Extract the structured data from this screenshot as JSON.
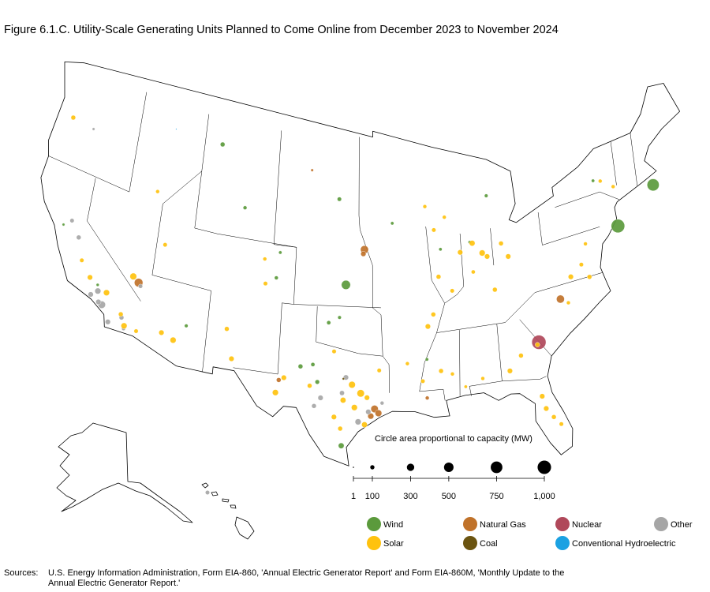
{
  "title": "Figure 6.1.C. Utility-Scale Generating Units Planned to Come Online from December 2023 to November 2024",
  "size_legend": {
    "title": "Circle area proportional to capacity (MW)",
    "ticks": [
      1,
      100,
      300,
      500,
      750,
      {
        "value": 1000,
        "label": "1,000"
      }
    ]
  },
  "sources": [
    {
      "name": "Wind",
      "color": "#5b9a3c",
      "units": [
        {
          "lon": -70.5,
          "lat": 41.0,
          "mw": 800
        },
        {
          "lon": -74.0,
          "lat": 39.3,
          "mw": 1000
        },
        {
          "lon": -97.6,
          "lat": 38.6,
          "mw": 450
        },
        {
          "lon": -109.4,
          "lat": 47.2,
          "mw": 120
        },
        {
          "lon": -106.8,
          "lat": 43.2,
          "mw": 80
        },
        {
          "lon": -98.3,
          "lat": 44.6,
          "mw": 100
        },
        {
          "lon": -93.5,
          "lat": 42.9,
          "mw": 60
        },
        {
          "lon": -103.4,
          "lat": 40.5,
          "mw": 60
        },
        {
          "lon": -103.6,
          "lat": 38.7,
          "mw": 80
        },
        {
          "lon": -99.0,
          "lat": 35.9,
          "mw": 90
        },
        {
          "lon": -98.1,
          "lat": 36.3,
          "mw": 70
        },
        {
          "lon": -101.2,
          "lat": 32.7,
          "mw": 120
        },
        {
          "lon": -100.2,
          "lat": 32.9,
          "mw": 90
        },
        {
          "lon": -99.8,
          "lat": 31.7,
          "mw": 110
        },
        {
          "lon": -97.8,
          "lat": 27.3,
          "mw": 180
        },
        {
          "lon": -110.7,
          "lat": 34.2,
          "mw": 70
        },
        {
          "lon": -89.3,
          "lat": 40.8,
          "mw": 60
        },
        {
          "lon": -86.7,
          "lat": 41.0,
          "mw": 60
        },
        {
          "lon": -84.9,
          "lat": 44.0,
          "mw": 70
        },
        {
          "lon": -75.4,
          "lat": 42.9,
          "mw": 60
        },
        {
          "lon": -90.9,
          "lat": 33.2,
          "mw": 60
        },
        {
          "lon": -118.2,
          "lat": 35.1,
          "mw": 50
        },
        {
          "lon": -121.8,
          "lat": 38.1,
          "mw": 40
        }
      ]
    },
    {
      "name": "Natural Gas",
      "color": "#c0722a",
      "units": [
        {
          "lon": -96.0,
          "lat": 41.1,
          "mw": 350
        },
        {
          "lon": -96.1,
          "lat": 40.8,
          "mw": 150
        },
        {
          "lon": -115.0,
          "lat": 36.2,
          "mw": 400
        },
        {
          "lon": -95.2,
          "lat": 29.9,
          "mw": 300
        },
        {
          "lon": -94.9,
          "lat": 29.6,
          "mw": 250
        },
        {
          "lon": -95.5,
          "lat": 29.4,
          "mw": 200
        },
        {
          "lon": -79.6,
          "lat": 35.7,
          "mw": 350
        },
        {
          "lon": -102.9,
          "lat": 31.6,
          "mw": 120
        },
        {
          "lon": -100.9,
          "lat": 46.5,
          "mw": 40
        },
        {
          "lon": -91.0,
          "lat": 30.5,
          "mw": 80
        }
      ]
    },
    {
      "name": "Nuclear",
      "color": "#b0485a",
      "units": [
        {
          "lon": -81.76,
          "lat": 33.14,
          "mw": 1100
        }
      ]
    },
    {
      "name": "Other",
      "color": "#a6a6a6",
      "units": [
        {
          "lon": -121.0,
          "lat": 45.1,
          "mw": 40
        },
        {
          "lon": -118.1,
          "lat": 34.7,
          "mw": 200
        },
        {
          "lon": -118.6,
          "lat": 34.3,
          "mw": 150
        },
        {
          "lon": -117.6,
          "lat": 33.9,
          "mw": 300
        },
        {
          "lon": -117.9,
          "lat": 34.0,
          "mw": 150
        },
        {
          "lon": -120.4,
          "lat": 37.7,
          "mw": 120
        },
        {
          "lon": -121.2,
          "lat": 38.6,
          "mw": 100
        },
        {
          "lon": -116.9,
          "lat": 32.9,
          "mw": 150
        },
        {
          "lon": -115.6,
          "lat": 32.8,
          "mw": 80
        },
        {
          "lon": -114.8,
          "lat": 36.0,
          "mw": 100
        },
        {
          "lon": -97.5,
          "lat": 32.1,
          "mw": 150
        },
        {
          "lon": -97.8,
          "lat": 31.0,
          "mw": 130
        },
        {
          "lon": -99.5,
          "lat": 30.6,
          "mw": 150
        },
        {
          "lon": -100.0,
          "lat": 30.0,
          "mw": 120
        },
        {
          "lon": -96.5,
          "lat": 29.0,
          "mw": 200
        },
        {
          "lon": -95.7,
          "lat": 29.7,
          "mw": 150
        },
        {
          "lon": -94.6,
          "lat": 30.3,
          "mw": 80
        },
        {
          "lon": -115.9,
          "lat": 33.5,
          "mw": 120
        },
        {
          "lon": -158.0,
          "lat": 21.5,
          "mw": 100
        }
      ]
    },
    {
      "name": "Solar",
      "color": "#ffc20e",
      "units": [
        {
          "lon": -117.4,
          "lat": 34.8,
          "mw": 200
        },
        {
          "lon": -115.6,
          "lat": 33.0,
          "mw": 200
        },
        {
          "lon": -116.0,
          "lat": 33.7,
          "mw": 120
        },
        {
          "lon": -118.9,
          "lat": 35.4,
          "mw": 150
        },
        {
          "lon": -119.8,
          "lat": 36.3,
          "mw": 100
        },
        {
          "lon": -114.6,
          "lat": 32.9,
          "mw": 100
        },
        {
          "lon": -112.6,
          "lat": 33.3,
          "mw": 150
        },
        {
          "lon": -111.6,
          "lat": 33.0,
          "mw": 200
        },
        {
          "lon": -115.5,
          "lat": 36.5,
          "mw": 250
        },
        {
          "lon": -106.8,
          "lat": 32.6,
          "mw": 150
        },
        {
          "lon": -107.4,
          "lat": 34.6,
          "mw": 120
        },
        {
          "lon": -104.5,
          "lat": 38.2,
          "mw": 100
        },
        {
          "lon": -104.7,
          "lat": 39.9,
          "mw": 80
        },
        {
          "lon": -114.6,
          "lat": 42.7,
          "mw": 80
        },
        {
          "lon": -113.3,
          "lat": 39.3,
          "mw": 100
        },
        {
          "lon": -122.9,
          "lat": 45.2,
          "mw": 120
        },
        {
          "lon": -102.5,
          "lat": 31.8,
          "mw": 150
        },
        {
          "lon": -103.1,
          "lat": 30.7,
          "mw": 200
        },
        {
          "lon": -100.4,
          "lat": 31.4,
          "mw": 120
        },
        {
          "lon": -98.5,
          "lat": 33.9,
          "mw": 100
        },
        {
          "lon": -97.0,
          "lat": 31.6,
          "mw": 250
        },
        {
          "lon": -96.3,
          "lat": 31.0,
          "mw": 300
        },
        {
          "lon": -96.8,
          "lat": 30.0,
          "mw": 200
        },
        {
          "lon": -97.7,
          "lat": 30.5,
          "mw": 180
        },
        {
          "lon": -98.4,
          "lat": 29.3,
          "mw": 150
        },
        {
          "lon": -96.0,
          "lat": 28.8,
          "mw": 180
        },
        {
          "lon": -97.9,
          "lat": 28.5,
          "mw": 120
        },
        {
          "lon": -95.8,
          "lat": 30.7,
          "mw": 150
        },
        {
          "lon": -94.8,
          "lat": 32.6,
          "mw": 100
        },
        {
          "lon": -92.5,
          "lat": 33.0,
          "mw": 80
        },
        {
          "lon": -90.7,
          "lat": 35.5,
          "mw": 150
        },
        {
          "lon": -90.2,
          "lat": 36.3,
          "mw": 120
        },
        {
          "lon": -91.3,
          "lat": 31.7,
          "mw": 100
        },
        {
          "lon": -89.8,
          "lat": 32.3,
          "mw": 120
        },
        {
          "lon": -88.9,
          "lat": 32.0,
          "mw": 80
        },
        {
          "lon": -87.9,
          "lat": 31.0,
          "mw": 60
        },
        {
          "lon": -86.5,
          "lat": 31.4,
          "mw": 80
        },
        {
          "lon": -84.3,
          "lat": 31.6,
          "mw": 150
        },
        {
          "lon": -83.3,
          "lat": 32.5,
          "mw": 120
        },
        {
          "lon": -81.9,
          "lat": 33.0,
          "mw": 120
        },
        {
          "lon": -81.8,
          "lat": 28.5,
          "mw": 150
        },
        {
          "lon": -81.3,
          "lat": 27.8,
          "mw": 120
        },
        {
          "lon": -82.0,
          "lat": 29.4,
          "mw": 150
        },
        {
          "lon": -80.8,
          "lat": 27.2,
          "mw": 100
        },
        {
          "lon": -78.5,
          "lat": 37.0,
          "mw": 150
        },
        {
          "lon": -77.5,
          "lat": 37.6,
          "mw": 100
        },
        {
          "lon": -77.0,
          "lat": 36.6,
          "mw": 120
        },
        {
          "lon": -79.0,
          "lat": 35.3,
          "mw": 80
        },
        {
          "lon": -76.9,
          "lat": 38.9,
          "mw": 80
        },
        {
          "lon": -85.3,
          "lat": 39.8,
          "mw": 150
        },
        {
          "lon": -85.7,
          "lat": 40.1,
          "mw": 200
        },
        {
          "lon": -86.5,
          "lat": 40.9,
          "mw": 180
        },
        {
          "lon": -87.6,
          "lat": 40.4,
          "mw": 150
        },
        {
          "lon": -89.6,
          "lat": 38.9,
          "mw": 120
        },
        {
          "lon": -88.5,
          "lat": 37.8,
          "mw": 100
        },
        {
          "lon": -86.6,
          "lat": 38.9,
          "mw": 90
        },
        {
          "lon": -84.9,
          "lat": 37.4,
          "mw": 120
        },
        {
          "lon": -83.5,
          "lat": 39.5,
          "mw": 150
        },
        {
          "lon": -84.0,
          "lat": 40.5,
          "mw": 120
        },
        {
          "lon": -89.8,
          "lat": 42.2,
          "mw": 100
        },
        {
          "lon": -88.8,
          "lat": 43.0,
          "mw": 80
        },
        {
          "lon": -90.5,
          "lat": 43.9,
          "mw": 80
        },
        {
          "lon": -74.8,
          "lat": 42.7,
          "mw": 80
        },
        {
          "lon": -73.8,
          "lat": 42.0,
          "mw": 80
        }
      ]
    },
    {
      "name": "Coal",
      "color": "#6b5410",
      "units": [
        {
          "lon": -97.7,
          "lat": 32.0,
          "mw": 30
        }
      ]
    },
    {
      "name": "Conventional Hydroelectric",
      "color": "#1ba1e2",
      "units": [
        {
          "lon": -113.8,
          "lat": 47.3,
          "mw": 5
        }
      ]
    }
  ],
  "sources_note": {
    "label": "Sources:",
    "lines": [
      "U.S. Energy Information Administration, Form EIA-860, 'Annual Electric Generator Report' and Form EIA-860M, 'Monthly Update to the",
      "Annual Electric Generator Report.'"
    ]
  }
}
